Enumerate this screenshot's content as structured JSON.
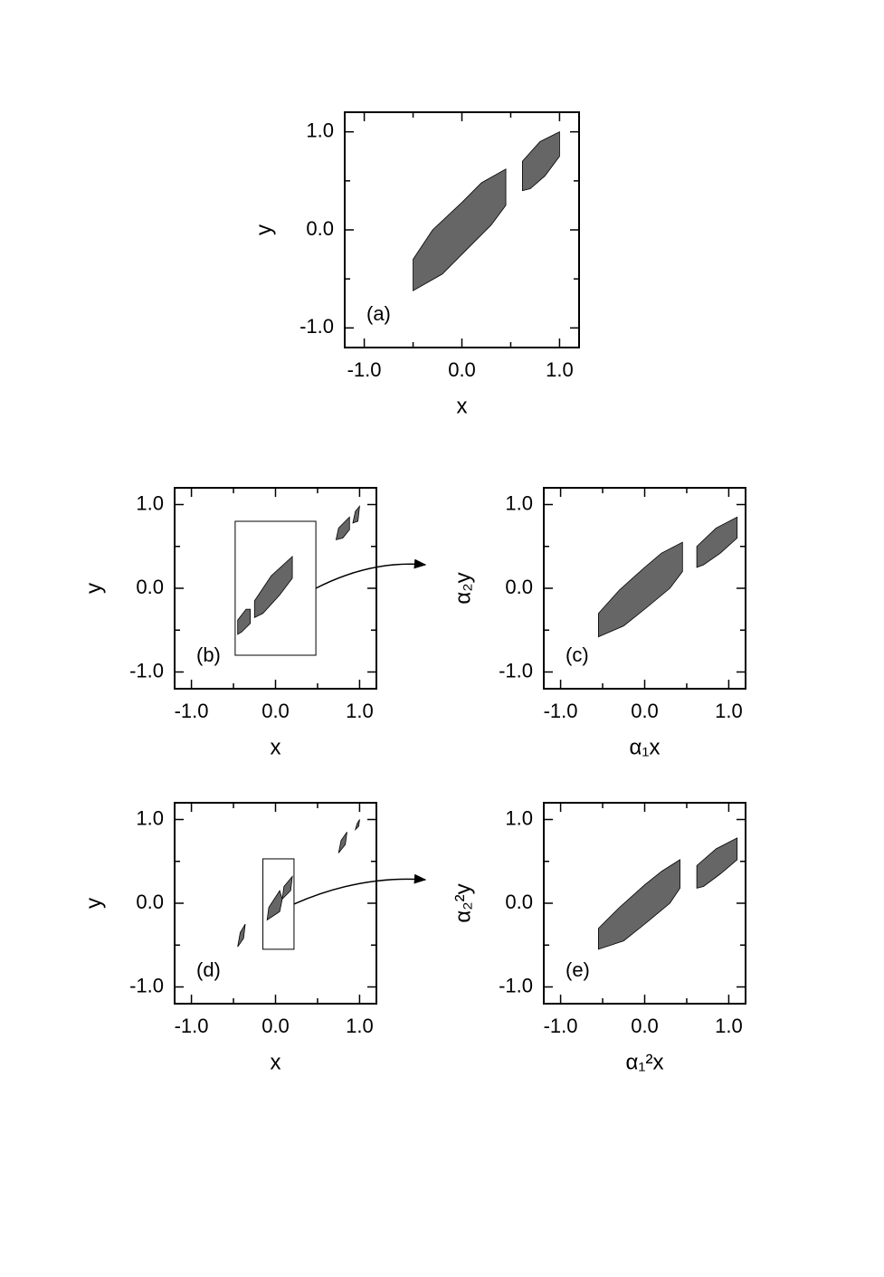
{
  "chart_data": [
    {
      "type": "scatter",
      "panel_label": "(a)",
      "xlabel": "x",
      "ylabel": "y",
      "color": "#000000",
      "xlim": [
        -1.2,
        1.2
      ],
      "ylim": [
        -1.2,
        1.2
      ],
      "xticks": [
        {
          "value": -1,
          "label": "-1.0"
        },
        {
          "value": 0,
          "label": "0.0"
        },
        {
          "value": 1,
          "label": "1.0"
        }
      ],
      "yticks": [
        {
          "value": -1,
          "label": "-1.0"
        },
        {
          "value": 0,
          "label": "0.0"
        },
        {
          "value": 1,
          "label": "1.0"
        }
      ],
      "xminorticks": [
        -0.5,
        0.5
      ],
      "yminorticks": [
        -0.5,
        0.5
      ],
      "regions": [
        {
          "x": [
            -0.5,
            -0.5,
            -0.3,
            0.0,
            0.2,
            0.45,
            0.45,
            0.3,
            0.0,
            -0.2
          ],
          "y": [
            -0.62,
            -0.3,
            0.0,
            0.28,
            0.48,
            0.62,
            0.25,
            0.05,
            -0.25,
            -0.45
          ]
        },
        {
          "x": [
            0.62,
            0.62,
            0.8,
            1.0,
            1.0,
            0.85,
            0.7
          ],
          "y": [
            0.4,
            0.7,
            0.9,
            1.0,
            0.75,
            0.55,
            0.42
          ]
        }
      ]
    },
    {
      "type": "scatter",
      "panel_label": "(b)",
      "xlabel": "x",
      "ylabel": "y",
      "color": "#000000",
      "xlim": [
        -1.2,
        1.2
      ],
      "ylim": [
        -1.2,
        1.2
      ],
      "xticks": [
        {
          "value": -1,
          "label": "-1.0"
        },
        {
          "value": 0,
          "label": "0.0"
        },
        {
          "value": 1,
          "label": "1.0"
        }
      ],
      "yticks": [
        {
          "value": -1,
          "label": "-1.0"
        },
        {
          "value": 0,
          "label": "0.0"
        },
        {
          "value": 1,
          "label": "1.0"
        }
      ],
      "xminorticks": [
        -0.5,
        0.5
      ],
      "yminorticks": [
        -0.5,
        0.5
      ],
      "regions": [
        {
          "x": [
            -0.45,
            -0.45,
            -0.35,
            -0.3,
            -0.3,
            -0.4
          ],
          "y": [
            -0.55,
            -0.38,
            -0.25,
            -0.25,
            -0.42,
            -0.52
          ]
        },
        {
          "x": [
            -0.25,
            -0.25,
            -0.05,
            0.2,
            0.2,
            0.05,
            -0.15
          ],
          "y": [
            -0.35,
            -0.15,
            0.15,
            0.38,
            0.12,
            -0.08,
            -0.3
          ]
        },
        {
          "x": [
            0.72,
            0.75,
            0.88,
            0.88,
            0.8
          ],
          "y": [
            0.58,
            0.72,
            0.85,
            0.7,
            0.6
          ]
        },
        {
          "x": [
            0.92,
            0.95,
            1.0,
            0.98
          ],
          "y": [
            0.78,
            0.92,
            0.98,
            0.8
          ]
        }
      ],
      "inset_box": {
        "xlim": [
          -0.48,
          0.48
        ],
        "ylim": [
          -0.8,
          0.8
        ]
      }
    },
    {
      "type": "scatter",
      "panel_label": "(c)",
      "xlabel": "α₁x",
      "ylabel": "α₂y",
      "color": "#000000",
      "xlim": [
        -1.2,
        1.2
      ],
      "ylim": [
        -1.2,
        1.2
      ],
      "xticks": [
        {
          "value": -1,
          "label": "-1.0"
        },
        {
          "value": 0,
          "label": "0.0"
        },
        {
          "value": 1,
          "label": "1.0"
        }
      ],
      "yticks": [
        {
          "value": -1,
          "label": "-1.0"
        },
        {
          "value": 0,
          "label": "0.0"
        },
        {
          "value": 1,
          "label": "1.0"
        }
      ],
      "xminorticks": [
        -0.5,
        0.5
      ],
      "yminorticks": [
        -0.5,
        0.5
      ],
      "regions": [
        {
          "x": [
            -0.55,
            -0.55,
            -0.3,
            0.0,
            0.2,
            0.45,
            0.45,
            0.3,
            0.0,
            -0.25
          ],
          "y": [
            -0.58,
            -0.3,
            -0.02,
            0.25,
            0.42,
            0.55,
            0.2,
            0.0,
            -0.25,
            -0.45
          ]
        },
        {
          "x": [
            0.62,
            0.62,
            0.85,
            1.1,
            1.1,
            0.9,
            0.7
          ],
          "y": [
            0.25,
            0.5,
            0.72,
            0.85,
            0.6,
            0.42,
            0.28
          ]
        }
      ]
    },
    {
      "type": "scatter",
      "panel_label": "(d)",
      "xlabel": "x",
      "ylabel": "y",
      "color": "#000000",
      "xlim": [
        -1.2,
        1.2
      ],
      "ylim": [
        -1.2,
        1.2
      ],
      "xticks": [
        {
          "value": -1,
          "label": "-1.0"
        },
        {
          "value": 0,
          "label": "0.0"
        },
        {
          "value": 1,
          "label": "1.0"
        }
      ],
      "yticks": [
        {
          "value": -1,
          "label": "-1.0"
        },
        {
          "value": 0,
          "label": "0.0"
        },
        {
          "value": 1,
          "label": "1.0"
        }
      ],
      "xminorticks": [
        -0.5,
        0.5
      ],
      "yminorticks": [
        -0.5,
        0.5
      ],
      "regions": [
        {
          "x": [
            -0.45,
            -0.42,
            -0.36,
            -0.38
          ],
          "y": [
            -0.52,
            -0.35,
            -0.25,
            -0.42
          ]
        },
        {
          "x": [
            -0.1,
            -0.08,
            0.05,
            0.08,
            0.05
          ],
          "y": [
            -0.2,
            -0.05,
            0.15,
            0.05,
            -0.1
          ]
        },
        {
          "x": [
            0.08,
            0.1,
            0.2,
            0.18
          ],
          "y": [
            0.05,
            0.2,
            0.32,
            0.15
          ]
        },
        {
          "x": [
            0.75,
            0.78,
            0.85,
            0.83
          ],
          "y": [
            0.6,
            0.75,
            0.85,
            0.7
          ]
        },
        {
          "x": [
            0.95,
            0.97,
            1.0,
            0.99
          ],
          "y": [
            0.88,
            0.95,
            1.0,
            0.92
          ]
        }
      ],
      "inset_box": {
        "xlim": [
          -0.15,
          0.22
        ],
        "ylim": [
          -0.55,
          0.53
        ]
      }
    },
    {
      "type": "scatter",
      "panel_label": "(e)",
      "xlabel": "α₁²x",
      "ylabel": "α₂²y",
      "color": "#000000",
      "xlim": [
        -1.2,
        1.2
      ],
      "ylim": [
        -1.2,
        1.2
      ],
      "xticks": [
        {
          "value": -1,
          "label": "-1.0"
        },
        {
          "value": 0,
          "label": "0.0"
        },
        {
          "value": 1,
          "label": "1.0"
        }
      ],
      "yticks": [
        {
          "value": -1,
          "label": "-1.0"
        },
        {
          "value": 0,
          "label": "0.0"
        },
        {
          "value": 1,
          "label": "1.0"
        }
      ],
      "xminorticks": [
        -0.5,
        0.5
      ],
      "yminorticks": [
        -0.5,
        0.5
      ],
      "regions": [
        {
          "x": [
            -0.55,
            -0.55,
            -0.3,
            0.0,
            0.2,
            0.42,
            0.42,
            0.3,
            0.0,
            -0.25
          ],
          "y": [
            -0.55,
            -0.3,
            -0.05,
            0.22,
            0.38,
            0.52,
            0.18,
            0.0,
            -0.25,
            -0.45
          ]
        },
        {
          "x": [
            0.62,
            0.62,
            0.85,
            1.1,
            1.1,
            0.9,
            0.7
          ],
          "y": [
            0.18,
            0.45,
            0.65,
            0.78,
            0.52,
            0.35,
            0.2
          ]
        }
      ]
    }
  ]
}
